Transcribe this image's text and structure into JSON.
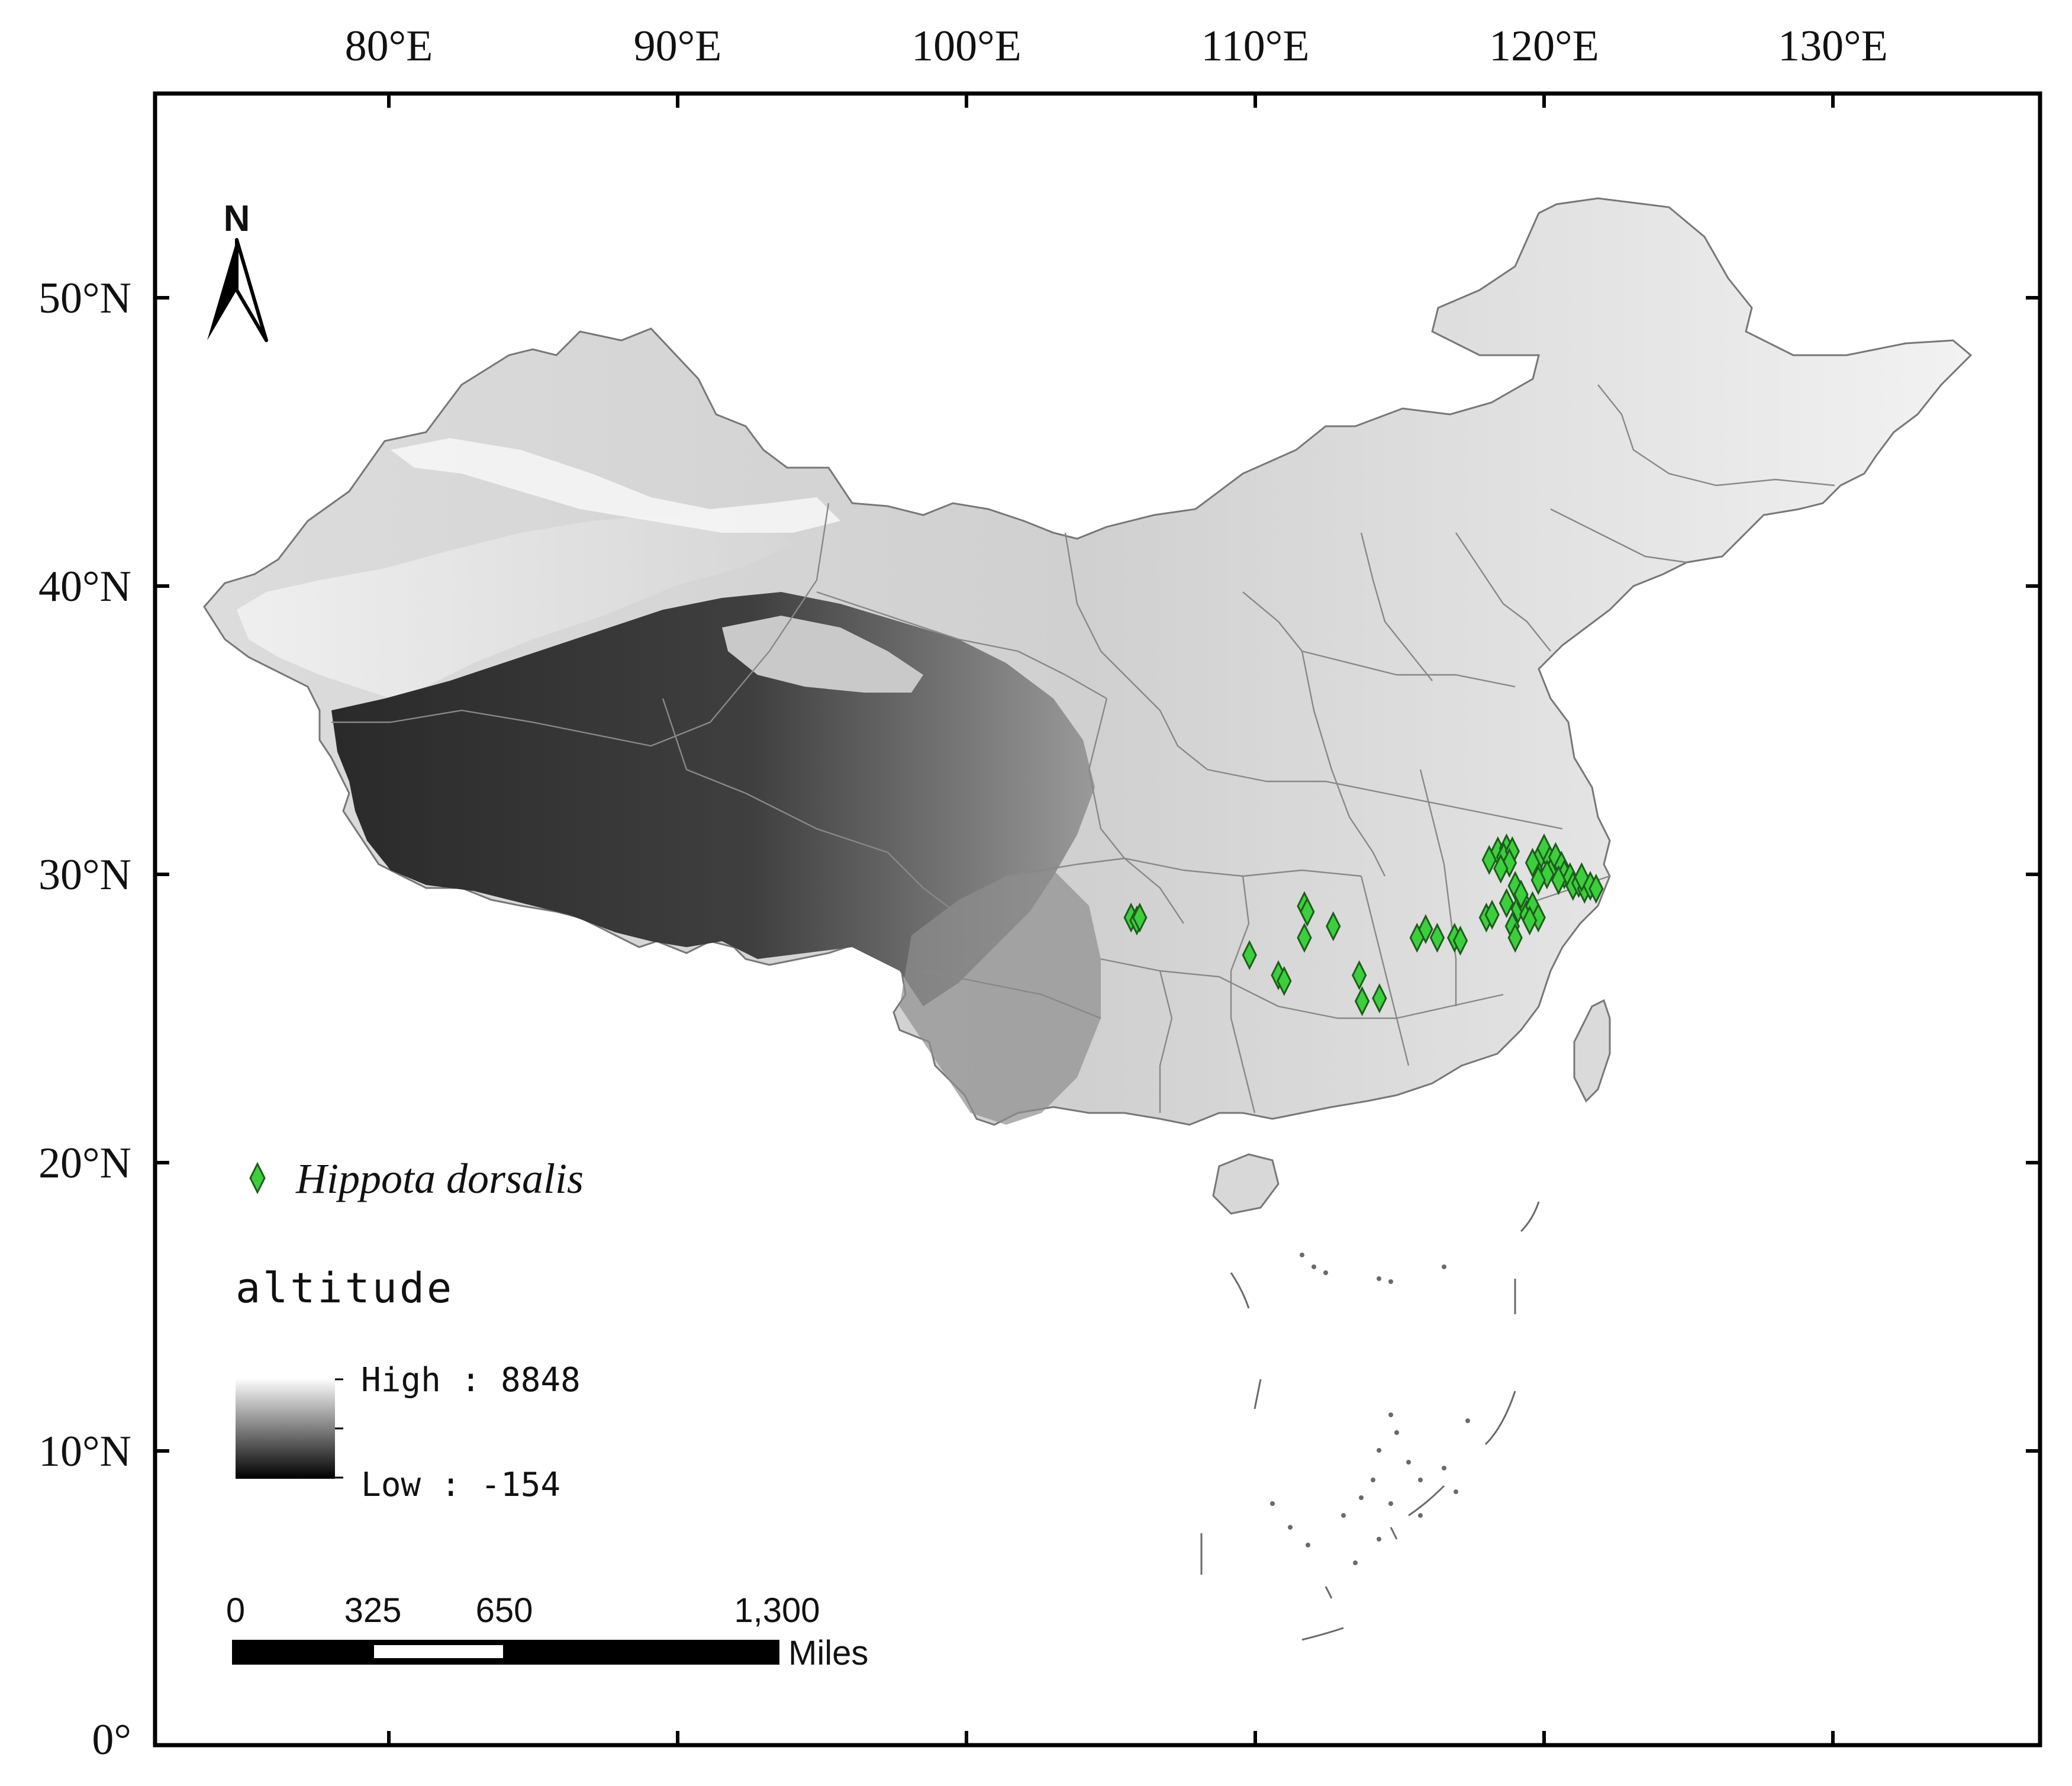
{
  "map": {
    "lon_ticks": [
      {
        "value": 80,
        "label": "80°E"
      },
      {
        "value": 90,
        "label": "90°E"
      },
      {
        "value": 100,
        "label": "100°E"
      },
      {
        "value": 110,
        "label": "110°E"
      },
      {
        "value": 120,
        "label": "120°E"
      },
      {
        "value": 130,
        "label": "130°E"
      }
    ],
    "lat_ticks": [
      {
        "value": 50,
        "label": "50°N"
      },
      {
        "value": 40,
        "label": "40°N"
      },
      {
        "value": 30,
        "label": "30°N"
      },
      {
        "value": 20,
        "label": "20°N"
      },
      {
        "value": 10,
        "label": "10°N"
      },
      {
        "value": 0,
        "label": "0°"
      }
    ],
    "north_arrow": {
      "label": "N",
      "icon": "north-arrow-icon"
    },
    "colors": {
      "frame": "#000000",
      "land_high": "#f4f4f4",
      "land_low": "#1a1a1a",
      "boundary": "#888888",
      "point_fill": "#3ccf3c",
      "point_stroke": "#1d5c1d"
    }
  },
  "legend": {
    "species_label": "Hippota dorsalis",
    "species_icon": "green-diamond-icon",
    "altitude_title": "altitude",
    "high_label": "High : 8848",
    "low_label": "Low : -154"
  },
  "scale_bar": {
    "tick_labels": [
      "0",
      "325",
      "650",
      "1,300"
    ],
    "unit": "Miles"
  },
  "occurrences": [
    [
      105.7,
      28.5
    ],
    [
      105.9,
      28.4
    ],
    [
      106.0,
      28.5
    ],
    [
      109.8,
      27.2
    ],
    [
      110.8,
      26.5
    ],
    [
      111.0,
      26.3
    ],
    [
      111.7,
      28.9
    ],
    [
      111.8,
      28.7
    ],
    [
      111.7,
      27.8
    ],
    [
      112.7,
      28.2
    ],
    [
      113.6,
      26.5
    ],
    [
      113.7,
      25.6
    ],
    [
      114.3,
      25.7
    ],
    [
      115.6,
      27.8
    ],
    [
      115.9,
      28.1
    ],
    [
      116.3,
      27.8
    ],
    [
      116.9,
      27.8
    ],
    [
      117.1,
      27.7
    ],
    [
      118.0,
      28.5
    ],
    [
      118.2,
      28.6
    ],
    [
      118.1,
      30.5
    ],
    [
      118.4,
      30.8
    ],
    [
      118.7,
      30.9
    ],
    [
      118.6,
      30.6
    ],
    [
      118.9,
      30.8
    ],
    [
      118.8,
      30.4
    ],
    [
      118.5,
      30.2
    ],
    [
      119.1,
      28.8
    ],
    [
      119.3,
      29.0
    ],
    [
      119.0,
      29.6
    ],
    [
      119.2,
      29.3
    ],
    [
      118.9,
      28.2
    ],
    [
      119.0,
      27.8
    ],
    [
      119.4,
      28.6
    ],
    [
      119.6,
      28.9
    ],
    [
      119.8,
      28.5
    ],
    [
      119.5,
      28.4
    ],
    [
      119.7,
      30.2
    ],
    [
      119.9,
      30.7
    ],
    [
      120.0,
      30.9
    ],
    [
      120.2,
      30.5
    ],
    [
      120.3,
      30.2
    ],
    [
      120.4,
      30.6
    ],
    [
      120.6,
      30.3
    ],
    [
      120.7,
      30.0
    ],
    [
      120.9,
      29.9
    ],
    [
      121.0,
      29.6
    ],
    [
      121.2,
      29.7
    ],
    [
      121.4,
      29.5
    ],
    [
      121.6,
      29.6
    ],
    [
      121.8,
      29.5
    ],
    [
      121.3,
      29.9
    ],
    [
      120.1,
      30.0
    ],
    [
      119.6,
      30.4
    ],
    [
      118.7,
      29.0
    ],
    [
      119.8,
      29.8
    ],
    [
      120.5,
      29.8
    ]
  ]
}
